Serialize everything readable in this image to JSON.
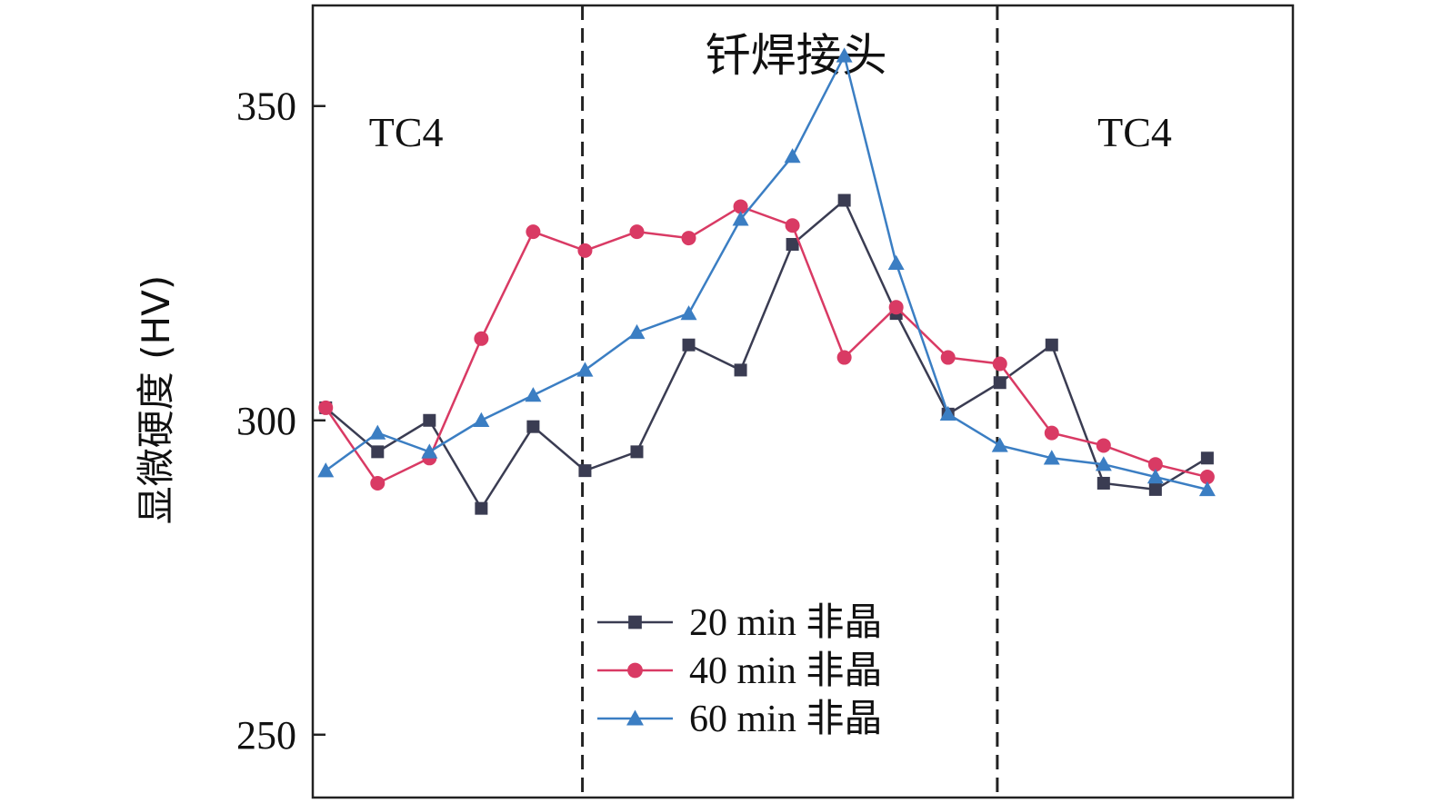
{
  "chart_data": {
    "type": "line",
    "title": "",
    "xlabel": "",
    "ylabel": "显微硬度 (HV)",
    "ylim": [
      240,
      366
    ],
    "yticks": [
      250,
      300,
      350
    ],
    "x": [
      1,
      2,
      3,
      4,
      5,
      6,
      7,
      8,
      9,
      10,
      11,
      12,
      13,
      14,
      15,
      16,
      17,
      18
    ],
    "xlim": [
      0.75,
      19.65
    ],
    "grid": false,
    "legend_position": "bottom-center",
    "region_boundaries_x": [
      5.95,
      13.95
    ],
    "regions": [
      {
        "label": "TC4"
      },
      {
        "label": "钎焊接头"
      },
      {
        "label": "TC4"
      }
    ],
    "series": [
      {
        "name": "20 min 非晶",
        "marker": "square",
        "color": "#3a3c52",
        "values": [
          302,
          295,
          300,
          286,
          299,
          292,
          295,
          312,
          308,
          328,
          335,
          317,
          301,
          306,
          312,
          290,
          289,
          294
        ]
      },
      {
        "name": "40 min 非晶",
        "marker": "circle",
        "color": "#d93a64",
        "values": [
          302,
          290,
          294,
          313,
          330,
          327,
          330,
          329,
          334,
          331,
          310,
          318,
          310,
          309,
          298,
          296,
          293,
          291
        ]
      },
      {
        "name": "60 min 非晶",
        "marker": "triangle",
        "color": "#3b7ec3",
        "values": [
          292,
          298,
          295,
          300,
          304,
          308,
          314,
          317,
          332,
          342,
          358,
          325,
          301,
          296,
          294,
          293,
          291,
          289
        ]
      }
    ]
  }
}
